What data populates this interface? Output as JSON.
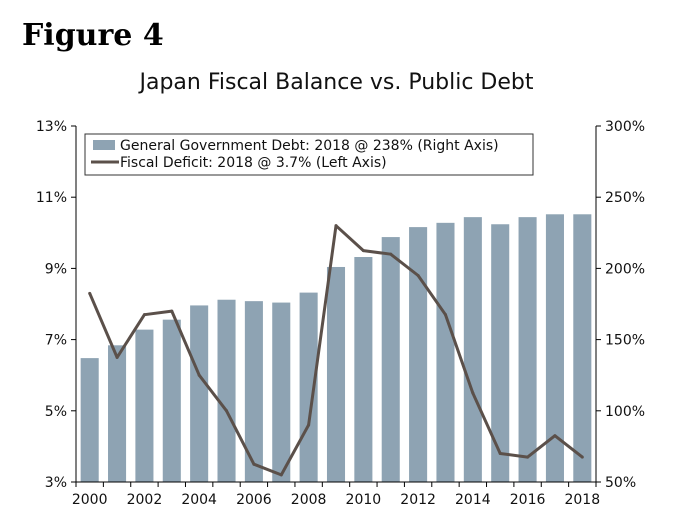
{
  "figure_label": "Figure 4",
  "chart_data": {
    "type": "bar+line",
    "title": "Japan Fiscal Balance vs. Public Debt",
    "years": [
      2000,
      2001,
      2002,
      2003,
      2004,
      2005,
      2006,
      2007,
      2008,
      2009,
      2010,
      2011,
      2012,
      2013,
      2014,
      2015,
      2016,
      2017,
      2018
    ],
    "x_tick_labels": [
      "2000",
      "2002",
      "2004",
      "2006",
      "2008",
      "2010",
      "2012",
      "2014",
      "2016",
      "2018"
    ],
    "left_axis": {
      "min": 3,
      "max": 13,
      "ticks": [
        "3%",
        "5%",
        "7%",
        "9%",
        "11%",
        "13%"
      ]
    },
    "right_axis": {
      "min": 50,
      "max": 300,
      "ticks": [
        "50%",
        "100%",
        "150%",
        "200%",
        "250%",
        "300%"
      ]
    },
    "series": [
      {
        "name": "General Government Debt: 2018 @ 238% (Right Axis)",
        "type": "bar",
        "axis": "right",
        "color": "#8ea3b3",
        "values": [
          137,
          146,
          157,
          164,
          174,
          178,
          177,
          176,
          183,
          201,
          208,
          222,
          229,
          232,
          236,
          231,
          236,
          238,
          238
        ]
      },
      {
        "name": "Fiscal Deficit: 2018 @ 3.7% (Left Axis)",
        "type": "line",
        "axis": "left",
        "color": "#5b504a",
        "values": [
          8.3,
          6.5,
          7.7,
          7.8,
          6.0,
          5.0,
          3.5,
          3.2,
          4.6,
          10.2,
          9.5,
          9.4,
          8.8,
          7.7,
          5.5,
          3.8,
          3.7,
          4.3,
          3.7
        ]
      }
    ]
  }
}
